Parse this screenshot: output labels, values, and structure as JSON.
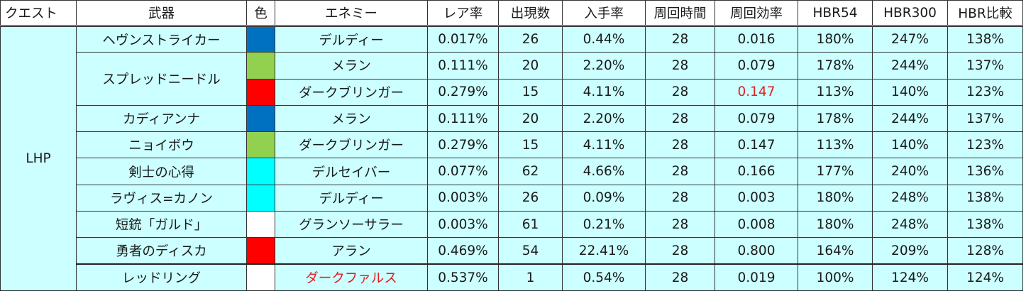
{
  "headers": [
    "クエスト",
    "武器",
    "色",
    "エネミー",
    "レア率",
    "出現数",
    "入手率",
    "周回時間",
    "周回効率",
    "HBR54",
    "HBR300",
    "HBR比較"
  ],
  "quest": "LHP",
  "colors": {
    "blue": "#0070c0",
    "green": "#92d050",
    "red": "#ff0000",
    "cyan": "#00ffff",
    "white": "#ffffff",
    "highlight": "#e02020",
    "row_bg": "#ccffff"
  },
  "rows": [
    {
      "weapon": "ヘヴンストライカー",
      "color": "blue",
      "enemy": "デルディー",
      "rare": "0.017%",
      "count": "26",
      "get": "0.44%",
      "time": "28",
      "eff": "0.016",
      "hbr54": "180%",
      "hbr300": "247%",
      "cmp": "138%"
    },
    {
      "weapon": "スプレッドニードル",
      "color": "green",
      "enemy": "メラン",
      "rare": "0.111%",
      "count": "20",
      "get": "2.20%",
      "time": "28",
      "eff": "0.079",
      "hbr54": "178%",
      "hbr300": "244%",
      "cmp": "137%"
    },
    {
      "weapon": "",
      "color": "red",
      "enemy": "ダークブリンガー",
      "rare": "0.279%",
      "count": "15",
      "get": "4.11%",
      "time": "28",
      "eff": "0.147",
      "hbr54": "113%",
      "hbr300": "140%",
      "cmp": "123%"
    },
    {
      "weapon": "カディアンナ",
      "color": "blue",
      "enemy": "メラン",
      "rare": "0.111%",
      "count": "20",
      "get": "2.20%",
      "time": "28",
      "eff": "0.079",
      "hbr54": "178%",
      "hbr300": "244%",
      "cmp": "137%"
    },
    {
      "weapon": "ニョイボウ",
      "color": "green",
      "enemy": "ダークブリンガー",
      "rare": "0.279%",
      "count": "15",
      "get": "4.11%",
      "time": "28",
      "eff": "0.147",
      "hbr54": "113%",
      "hbr300": "140%",
      "cmp": "123%"
    },
    {
      "weapon": "剣士の心得",
      "color": "cyan",
      "enemy": "デルセイバー",
      "rare": "0.077%",
      "count": "62",
      "get": "4.66%",
      "time": "28",
      "eff": "0.166",
      "hbr54": "177%",
      "hbr300": "240%",
      "cmp": "136%"
    },
    {
      "weapon": "ラヴィス=カノン",
      "color": "cyan",
      "enemy": "デルディー",
      "rare": "0.003%",
      "count": "26",
      "get": "0.09%",
      "time": "28",
      "eff": "0.003",
      "hbr54": "180%",
      "hbr300": "248%",
      "cmp": "138%"
    },
    {
      "weapon": "短銃「ガルド」",
      "color": "white",
      "enemy": "グランソーサラー",
      "rare": "0.003%",
      "count": "61",
      "get": "0.21%",
      "time": "28",
      "eff": "0.008",
      "hbr54": "180%",
      "hbr300": "248%",
      "cmp": "138%"
    },
    {
      "weapon": "勇者のディスカ",
      "color": "red",
      "enemy": "アラン",
      "rare": "0.469%",
      "count": "54",
      "get": "22.41%",
      "time": "28",
      "eff": "0.800",
      "hbr54": "164%",
      "hbr300": "209%",
      "cmp": "128%"
    },
    {
      "weapon": "レッドリング",
      "color": "white",
      "enemy": "ダークファルス",
      "rare": "0.537%",
      "count": "1",
      "get": "0.54%",
      "time": "28",
      "eff": "0.019",
      "hbr54": "100%",
      "hbr300": "124%",
      "cmp": "124%"
    }
  ]
}
